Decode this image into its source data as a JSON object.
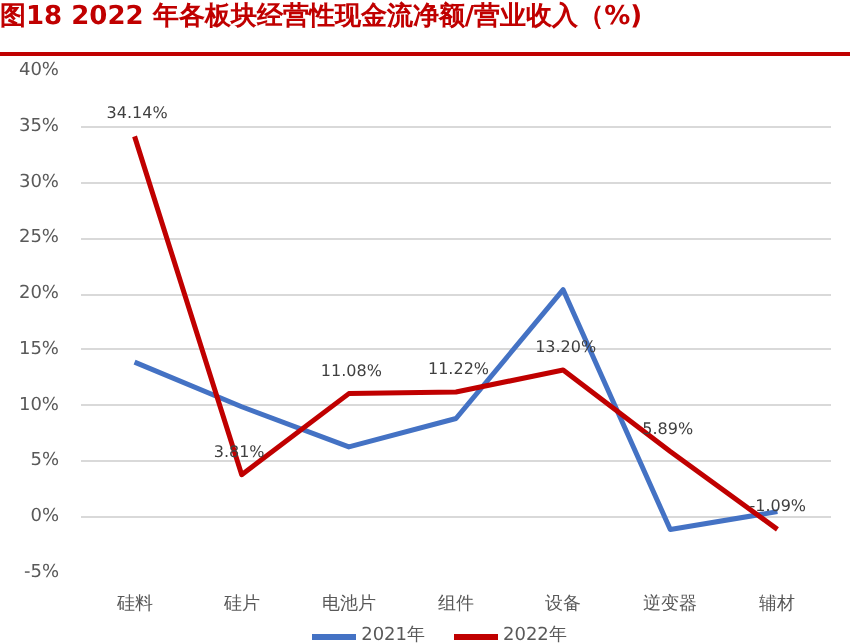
{
  "chart_data": {
    "type": "line",
    "title": "图18  2022 年各板块经营性现金流净额/营业收入（%)",
    "categories": [
      "硅料",
      "硅片",
      "电池片",
      "组件",
      "设备",
      "逆变器",
      "辅材"
    ],
    "series": [
      {
        "name": "2021年",
        "color": "#4472c4",
        "values": [
          13.9,
          9.9,
          6.3,
          8.85,
          20.4,
          -1.1,
          0.5
        ]
      },
      {
        "name": "2022年",
        "color": "#c00000",
        "values": [
          34.14,
          3.81,
          11.08,
          11.22,
          13.2,
          5.89,
          -1.09
        ],
        "value_labels": [
          "34.14%",
          "3.81%",
          "11.08%",
          "11.22%",
          "13.20%",
          "5.89%",
          "-1.09%"
        ]
      }
    ],
    "ylim": [
      -5,
      40
    ],
    "yticks": [
      {
        "value": -5,
        "label": "-5%"
      },
      {
        "value": 0,
        "label": "0%"
      },
      {
        "value": 5,
        "label": "5%"
      },
      {
        "value": 10,
        "label": "10%"
      },
      {
        "value": 15,
        "label": "15%"
      },
      {
        "value": 20,
        "label": "20%"
      },
      {
        "value": 25,
        "label": "25%"
      },
      {
        "value": 30,
        "label": "30%"
      },
      {
        "value": 35,
        "label": "35%"
      },
      {
        "value": 40,
        "label": "40%"
      }
    ],
    "grid": "y",
    "legend": "bottom",
    "marker": "none",
    "line_style": "solid"
  }
}
